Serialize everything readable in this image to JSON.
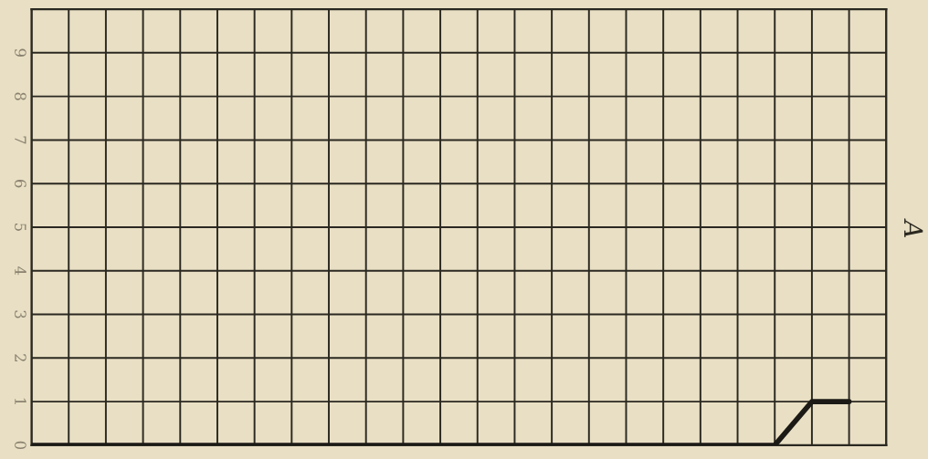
{
  "chart_data": {
    "type": "line",
    "categories": [
      null,
      null,
      null,
      null,
      null,
      null,
      null,
      null,
      null,
      null,
      null,
      null,
      null,
      null,
      null,
      null,
      null,
      null,
      null,
      null,
      null,
      null,
      null,
      null
    ],
    "series": [
      {
        "color": "#1c1a16",
        "values": [
          0,
          0,
          0,
          0,
          0,
          0,
          0,
          0,
          0,
          0,
          0,
          0,
          0,
          0,
          0,
          0,
          0,
          0,
          0,
          0,
          0,
          1,
          1,
          null
        ]
      }
    ],
    "ylim": [
      0,
      10
    ],
    "yticks": [
      0,
      1,
      2,
      3,
      4,
      5,
      6,
      7,
      8,
      9,
      {
        "value": 10,
        "label": null
      }
    ],
    "grid": true,
    "tick_labels": "y",
    "annotations": [
      "A"
    ]
  }
}
